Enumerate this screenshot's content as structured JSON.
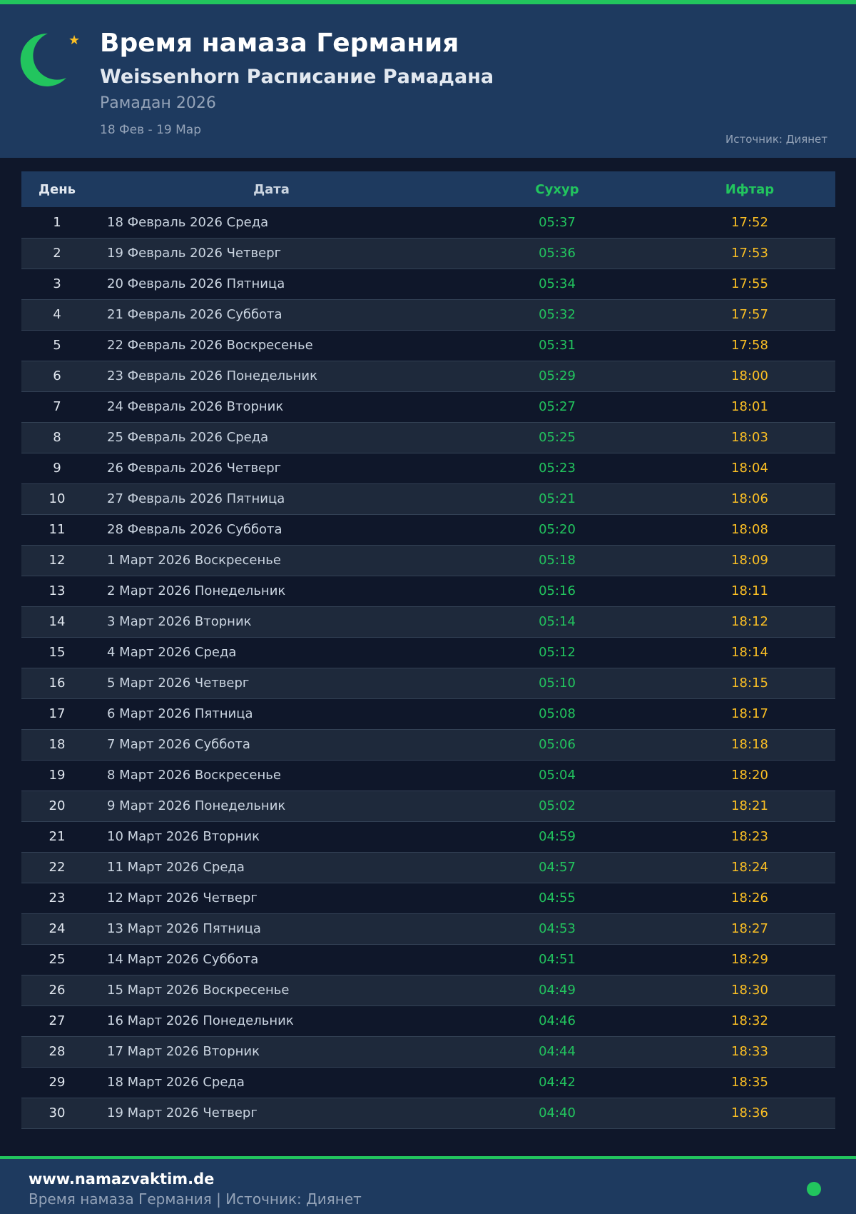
{
  "header": {
    "title": "Время намаза Германия",
    "subtitle": "Weissenhorn Расписание Рамадана",
    "year": "Рамадан 2026",
    "range": "18 Фев - 19 Мар",
    "source": "Источник: Диянет"
  },
  "table": {
    "columns": [
      "День",
      "Дата",
      "Сухур",
      "Ифтар"
    ],
    "rows": [
      [
        "1",
        "18 Февраль 2026 Среда",
        "05:37",
        "17:52"
      ],
      [
        "2",
        "19 Февраль 2026 Четверг",
        "05:36",
        "17:53"
      ],
      [
        "3",
        "20 Февраль 2026 Пятница",
        "05:34",
        "17:55"
      ],
      [
        "4",
        "21 Февраль 2026 Суббота",
        "05:32",
        "17:57"
      ],
      [
        "5",
        "22 Февраль 2026 Воскресенье",
        "05:31",
        "17:58"
      ],
      [
        "6",
        "23 Февраль 2026 Понедельник",
        "05:29",
        "18:00"
      ],
      [
        "7",
        "24 Февраль 2026 Вторник",
        "05:27",
        "18:01"
      ],
      [
        "8",
        "25 Февраль 2026 Среда",
        "05:25",
        "18:03"
      ],
      [
        "9",
        "26 Февраль 2026 Четверг",
        "05:23",
        "18:04"
      ],
      [
        "10",
        "27 Февраль 2026 Пятница",
        "05:21",
        "18:06"
      ],
      [
        "11",
        "28 Февраль 2026 Суббота",
        "05:20",
        "18:08"
      ],
      [
        "12",
        "1 Март 2026 Воскресенье",
        "05:18",
        "18:09"
      ],
      [
        "13",
        "2 Март 2026 Понедельник",
        "05:16",
        "18:11"
      ],
      [
        "14",
        "3 Март 2026 Вторник",
        "05:14",
        "18:12"
      ],
      [
        "15",
        "4 Март 2026 Среда",
        "05:12",
        "18:14"
      ],
      [
        "16",
        "5 Март 2026 Четверг",
        "05:10",
        "18:15"
      ],
      [
        "17",
        "6 Март 2026 Пятница",
        "05:08",
        "18:17"
      ],
      [
        "18",
        "7 Март 2026 Суббота",
        "05:06",
        "18:18"
      ],
      [
        "19",
        "8 Март 2026 Воскресенье",
        "05:04",
        "18:20"
      ],
      [
        "20",
        "9 Март 2026 Понедельник",
        "05:02",
        "18:21"
      ],
      [
        "21",
        "10 Март 2026 Вторник",
        "04:59",
        "18:23"
      ],
      [
        "22",
        "11 Март 2026 Среда",
        "04:57",
        "18:24"
      ],
      [
        "23",
        "12 Март 2026 Четверг",
        "04:55",
        "18:26"
      ],
      [
        "24",
        "13 Март 2026 Пятница",
        "04:53",
        "18:27"
      ],
      [
        "25",
        "14 Март 2026 Суббота",
        "04:51",
        "18:29"
      ],
      [
        "26",
        "15 Март 2026 Воскресенье",
        "04:49",
        "18:30"
      ],
      [
        "27",
        "16 Март 2026 Понедельник",
        "04:46",
        "18:32"
      ],
      [
        "28",
        "17 Март 2026 Вторник",
        "04:44",
        "18:33"
      ],
      [
        "29",
        "18 Март 2026 Среда",
        "04:42",
        "18:35"
      ],
      [
        "30",
        "19 Март 2026 Четверг",
        "04:40",
        "18:36"
      ]
    ]
  },
  "footer": {
    "site": "www.namazvaktim.de",
    "text": "Время намаза Германия | Источник: Диянет",
    "status_color": "#22c55e"
  },
  "colors": {
    "accent": "#22c55e",
    "iftar": "#fbbf24",
    "header_bg": "#1e3a5f",
    "page_bg": "#0f172a"
  },
  "icons": {
    "logo": "crescent-moon-icon",
    "star": "star-icon"
  }
}
